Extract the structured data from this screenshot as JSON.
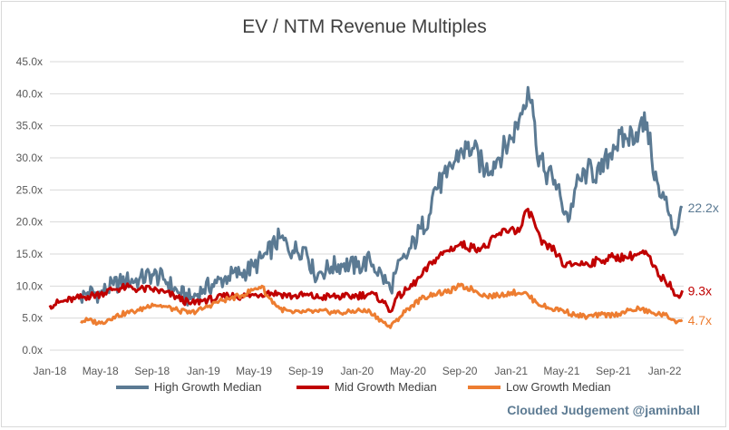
{
  "chart_data": {
    "type": "line",
    "title": "EV / NTM Revenue Multiples",
    "xlabel": "",
    "ylabel": "",
    "ylim": [
      0,
      45
    ],
    "yticks": [
      "0.0x",
      "5.0x",
      "10.0x",
      "15.0x",
      "20.0x",
      "25.0x",
      "30.0x",
      "35.0x",
      "40.0x",
      "45.0x"
    ],
    "xticks": [
      "Jan-18",
      "May-18",
      "Sep-18",
      "Jan-19",
      "May-19",
      "Sep-19",
      "Jan-20",
      "May-20",
      "Sep-20",
      "Jan-21",
      "May-21",
      "Sep-21",
      "Jan-22"
    ],
    "grid": "horizontal",
    "legend": "bottom",
    "x_start": "2018-01",
    "x_end": "2022-02",
    "series": [
      {
        "name": "High Growth Median",
        "color": "#5b7a93",
        "end_label": "22.2x",
        "points": [
          [
            "2018-03-15",
            8.2
          ],
          [
            "2018-04-01",
            9.0
          ],
          [
            "2018-05-01",
            8.8
          ],
          [
            "2018-06-01",
            10.2
          ],
          [
            "2018-07-01",
            10.8
          ],
          [
            "2018-08-01",
            11.0
          ],
          [
            "2018-09-01",
            11.8
          ],
          [
            "2018-10-01",
            11.0
          ],
          [
            "2018-11-01",
            9.0
          ],
          [
            "2018-12-01",
            8.0
          ],
          [
            "2019-01-01",
            9.5
          ],
          [
            "2019-02-01",
            10.5
          ],
          [
            "2019-03-01",
            11.5
          ],
          [
            "2019-04-01",
            12.0
          ],
          [
            "2019-05-01",
            13.0
          ],
          [
            "2019-06-01",
            15.0
          ],
          [
            "2019-07-01",
            17.5
          ],
          [
            "2019-08-01",
            15.5
          ],
          [
            "2019-09-01",
            16.0
          ],
          [
            "2019-09-20",
            12.0
          ],
          [
            "2019-10-01",
            12.0
          ],
          [
            "2019-11-01",
            13.0
          ],
          [
            "2019-12-01",
            13.5
          ],
          [
            "2020-01-01",
            13.0
          ],
          [
            "2020-02-01",
            14.0
          ],
          [
            "2020-03-01",
            11.5
          ],
          [
            "2020-03-20",
            9.5
          ],
          [
            "2020-04-01",
            12.0
          ],
          [
            "2020-05-01",
            15.0
          ],
          [
            "2020-06-01",
            19.0
          ],
          [
            "2020-06-20",
            21.0
          ],
          [
            "2020-07-01",
            25.0
          ],
          [
            "2020-08-01",
            27.0
          ],
          [
            "2020-09-01",
            31.0
          ],
          [
            "2020-10-01",
            31.5
          ],
          [
            "2020-11-01",
            28.0
          ],
          [
            "2020-12-01",
            30.0
          ],
          [
            "2021-01-01",
            33.0
          ],
          [
            "2021-01-20",
            36.0
          ],
          [
            "2021-02-10",
            41.0
          ],
          [
            "2021-02-20",
            39.0
          ],
          [
            "2021-03-01",
            32.0
          ],
          [
            "2021-03-20",
            28.0
          ],
          [
            "2021-04-15",
            26.5
          ],
          [
            "2021-05-01",
            23.0
          ],
          [
            "2021-05-20",
            20.5
          ],
          [
            "2021-06-01",
            25.0
          ],
          [
            "2021-07-01",
            28.0
          ],
          [
            "2021-08-01",
            27.5
          ],
          [
            "2021-09-01",
            32.0
          ],
          [
            "2021-10-01",
            33.0
          ],
          [
            "2021-11-01",
            34.5
          ],
          [
            "2021-11-20",
            35.5
          ],
          [
            "2021-12-01",
            30.0
          ],
          [
            "2021-12-20",
            24.0
          ],
          [
            "2022-01-01",
            23.5
          ],
          [
            "2022-01-15",
            21.0
          ],
          [
            "2022-01-25",
            18.0
          ],
          [
            "2022-02-05",
            21.0
          ],
          [
            "2022-02-12",
            22.2
          ]
        ]
      },
      {
        "name": "Mid Growth Median",
        "color": "#c00000",
        "end_label": "9.3x",
        "points": [
          [
            "2018-01-01",
            7.0
          ],
          [
            "2018-02-01",
            7.6
          ],
          [
            "2018-03-01",
            8.0
          ],
          [
            "2018-04-01",
            8.4
          ],
          [
            "2018-05-01",
            8.8
          ],
          [
            "2018-06-01",
            9.5
          ],
          [
            "2018-07-01",
            9.8
          ],
          [
            "2018-08-01",
            9.5
          ],
          [
            "2018-09-01",
            9.5
          ],
          [
            "2018-10-01",
            9.0
          ],
          [
            "2018-11-01",
            8.2
          ],
          [
            "2018-12-01",
            7.2
          ],
          [
            "2019-01-01",
            7.8
          ],
          [
            "2019-02-01",
            8.0
          ],
          [
            "2019-03-01",
            8.5
          ],
          [
            "2019-04-01",
            8.4
          ],
          [
            "2019-05-01",
            8.6
          ],
          [
            "2019-06-01",
            9.0
          ],
          [
            "2019-07-01",
            8.8
          ],
          [
            "2019-08-01",
            8.4
          ],
          [
            "2019-09-01",
            8.6
          ],
          [
            "2019-10-01",
            8.2
          ],
          [
            "2019-11-01",
            8.4
          ],
          [
            "2019-12-01",
            8.3
          ],
          [
            "2020-01-01",
            8.5
          ],
          [
            "2020-02-01",
            8.8
          ],
          [
            "2020-03-01",
            7.8
          ],
          [
            "2020-03-20",
            6.0
          ],
          [
            "2020-04-01",
            8.0
          ],
          [
            "2020-05-01",
            9.5
          ],
          [
            "2020-06-01",
            11.5
          ],
          [
            "2020-07-01",
            14.0
          ],
          [
            "2020-08-01",
            15.5
          ],
          [
            "2020-09-01",
            16.5
          ],
          [
            "2020-10-01",
            16.0
          ],
          [
            "2020-11-01",
            16.0
          ],
          [
            "2020-12-01",
            18.0
          ],
          [
            "2021-01-01",
            19.0
          ],
          [
            "2021-01-20",
            18.5
          ],
          [
            "2021-02-10",
            22.0
          ],
          [
            "2021-02-25",
            20.0
          ],
          [
            "2021-03-15",
            16.5
          ],
          [
            "2021-04-15",
            15.5
          ],
          [
            "2021-05-10",
            13.0
          ],
          [
            "2021-06-01",
            13.5
          ],
          [
            "2021-07-01",
            13.5
          ],
          [
            "2021-08-01",
            14.0
          ],
          [
            "2021-09-01",
            14.5
          ],
          [
            "2021-10-01",
            14.5
          ],
          [
            "2021-11-01",
            15.0
          ],
          [
            "2021-11-20",
            15.0
          ],
          [
            "2021-12-01",
            13.5
          ],
          [
            "2021-12-20",
            11.5
          ],
          [
            "2022-01-01",
            11.0
          ],
          [
            "2022-01-20",
            9.5
          ],
          [
            "2022-02-01",
            8.5
          ],
          [
            "2022-02-12",
            9.3
          ]
        ]
      },
      {
        "name": "Low Growth Median",
        "color": "#ed7d31",
        "end_label": "4.7x",
        "points": [
          [
            "2018-03-15",
            4.5
          ],
          [
            "2018-04-01",
            4.7
          ],
          [
            "2018-05-01",
            4.2
          ],
          [
            "2018-06-01",
            5.2
          ],
          [
            "2018-07-01",
            5.8
          ],
          [
            "2018-08-01",
            6.2
          ],
          [
            "2018-09-01",
            7.2
          ],
          [
            "2018-10-01",
            6.8
          ],
          [
            "2018-11-01",
            6.2
          ],
          [
            "2018-12-01",
            5.8
          ],
          [
            "2019-01-01",
            6.5
          ],
          [
            "2019-02-01",
            7.5
          ],
          [
            "2019-03-01",
            8.0
          ],
          [
            "2019-04-01",
            8.5
          ],
          [
            "2019-05-01",
            9.5
          ],
          [
            "2019-05-20",
            10.0
          ],
          [
            "2019-06-01",
            8.5
          ],
          [
            "2019-07-01",
            6.5
          ],
          [
            "2019-08-01",
            5.8
          ],
          [
            "2019-09-01",
            6.0
          ],
          [
            "2019-10-01",
            6.0
          ],
          [
            "2019-11-01",
            6.0
          ],
          [
            "2019-12-01",
            5.8
          ],
          [
            "2020-01-01",
            6.2
          ],
          [
            "2020-02-01",
            6.0
          ],
          [
            "2020-03-01",
            4.5
          ],
          [
            "2020-03-20",
            3.5
          ],
          [
            "2020-04-01",
            4.5
          ],
          [
            "2020-05-01",
            6.5
          ],
          [
            "2020-06-01",
            8.0
          ],
          [
            "2020-07-01",
            8.8
          ],
          [
            "2020-08-01",
            9.0
          ],
          [
            "2020-09-01",
            10.0
          ],
          [
            "2020-10-01",
            9.5
          ],
          [
            "2020-11-01",
            8.5
          ],
          [
            "2020-12-01",
            8.5
          ],
          [
            "2021-01-01",
            9.0
          ],
          [
            "2021-02-01",
            9.0
          ],
          [
            "2021-03-01",
            7.5
          ],
          [
            "2021-04-01",
            6.5
          ],
          [
            "2021-05-01",
            6.3
          ],
          [
            "2021-06-01",
            5.5
          ],
          [
            "2021-07-01",
            5.2
          ],
          [
            "2021-08-01",
            5.5
          ],
          [
            "2021-09-01",
            5.5
          ],
          [
            "2021-10-01",
            6.0
          ],
          [
            "2021-11-01",
            6.5
          ],
          [
            "2021-12-01",
            5.8
          ],
          [
            "2022-01-01",
            5.5
          ],
          [
            "2022-01-20",
            4.8
          ],
          [
            "2022-02-01",
            4.5
          ],
          [
            "2022-02-12",
            4.7
          ]
        ]
      }
    ]
  },
  "credit": "Clouded Judgement @jaminball"
}
